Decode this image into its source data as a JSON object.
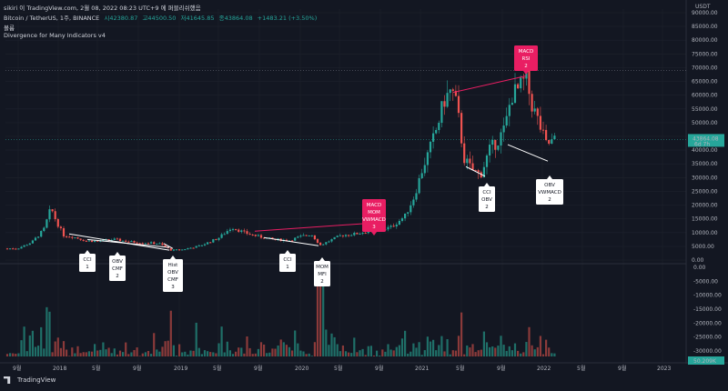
{
  "header": {
    "line1": "sikiri 이 TradingView.com, 2월 08, 2022 08:23 UTC+9 에 퍼블리쉬했음",
    "symbol": "Bitcoin / TetherUS, 1주, BINANCE",
    "o": "시42380.87",
    "h": "고44500.50",
    "l": "저41645.85",
    "c": "종43864.08",
    "chg": "+1483.21 (+3.50%)",
    "volume_label": "볼륨",
    "indicator_label": "Divergence for Many Indicators v4"
  },
  "price_axis": {
    "currency": "USDT",
    "labels": [
      "90000.00",
      "85000.00",
      "80000.00",
      "75000.00",
      "70000.00",
      "65000.00",
      "60000.00",
      "55000.00",
      "50000.00",
      "45000.00",
      "40000.00",
      "35000.00",
      "30000.00",
      "25000.00",
      "20000.00",
      "15000.00",
      "10000.00",
      "5000.00",
      "0.00"
    ],
    "current_price": "43864.08",
    "current_time": "6d 7h"
  },
  "volume_axis": {
    "labels": [
      "0.00",
      "-5000.00",
      "-10000.00",
      "-15000.00",
      "-20000.00",
      "-25000.00",
      "-30000.00"
    ],
    "current": "50.209K"
  },
  "time_axis": [
    "9월",
    "2018",
    "5월",
    "9월",
    "2019",
    "5월",
    "9월",
    "2020",
    "5월",
    "9월",
    "2021",
    "5월",
    "9월",
    "2022",
    "5월",
    "9월",
    "2023"
  ],
  "tags": {
    "top_magenta": [
      "MACD",
      "RSI",
      "2"
    ],
    "mid_magenta": [
      "MACD",
      "MOM",
      "VWMACD",
      "3"
    ],
    "cci1": [
      "CCI",
      "1"
    ],
    "obv_cmf": [
      "OBV",
      "CMF",
      "2"
    ],
    "hist_obv": [
      "Hist",
      "OBV",
      "CMF",
      "3"
    ],
    "cci1b": [
      "CCI",
      "1"
    ],
    "mom_mfi": [
      "MOM",
      "MFI",
      "2"
    ],
    "cci_obv": [
      "CCI",
      "OBV",
      "2"
    ],
    "obv_vw": [
      "OBV",
      "VWMACD",
      "2"
    ]
  },
  "colors": {
    "bg": "#131722",
    "up": "#26a69a",
    "down": "#ef5350",
    "magenta": "#e91e63",
    "grid": "#1e222d"
  },
  "footer": {
    "brand": "TradingView"
  }
}
